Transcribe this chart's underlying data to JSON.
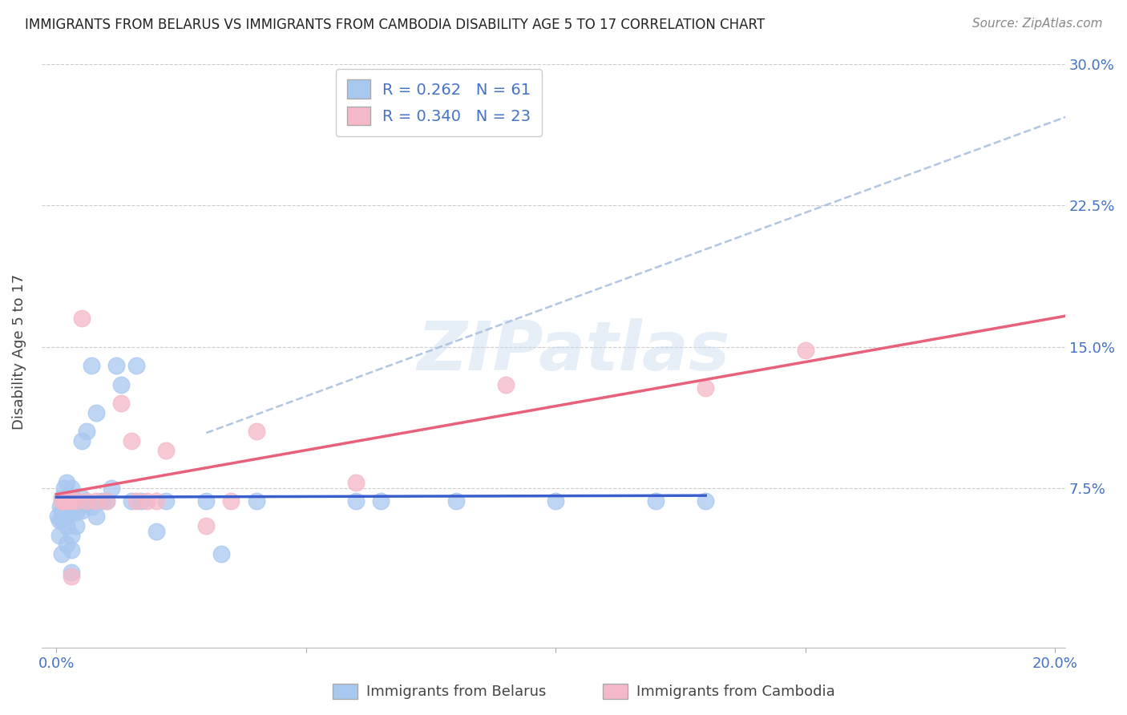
{
  "title": "IMMIGRANTS FROM BELARUS VS IMMIGRANTS FROM CAMBODIA DISABILITY AGE 5 TO 17 CORRELATION CHART",
  "source": "Source: ZipAtlas.com",
  "ylabel": "Disability Age 5 to 17",
  "xlim": [
    -0.003,
    0.202
  ],
  "ylim": [
    -0.01,
    0.305
  ],
  "xtick_vals": [
    0.0,
    0.05,
    0.1,
    0.15,
    0.2
  ],
  "xtick_labels": [
    "0.0%",
    "",
    "",
    "",
    "20.0%"
  ],
  "ytick_vals": [
    0.075,
    0.15,
    0.225,
    0.3
  ],
  "ytick_labels": [
    "7.5%",
    "15.0%",
    "22.5%",
    "30.0%"
  ],
  "watermark": "ZIPatlas",
  "belarus_color": "#a8c8f0",
  "cambodia_color": "#f5b8c8",
  "belarus_line_color": "#3a5fcd",
  "cambodia_line_color": "#e8607a",
  "dashed_line_color": "#a8c0e0",
  "R_belarus": 0.262,
  "N_belarus": 61,
  "R_cambodia": 0.34,
  "N_cambodia": 23,
  "belarus_x": [
    0.0003,
    0.0005,
    0.0006,
    0.0008,
    0.001,
    0.001,
    0.001,
    0.001,
    0.0012,
    0.0013,
    0.0015,
    0.0015,
    0.002,
    0.002,
    0.002,
    0.002,
    0.002,
    0.003,
    0.003,
    0.003,
    0.003,
    0.003,
    0.003,
    0.004,
    0.004,
    0.004,
    0.005,
    0.005,
    0.005,
    0.006,
    0.006,
    0.007,
    0.007,
    0.008,
    0.008,
    0.009,
    0.01,
    0.011,
    0.012,
    0.013,
    0.015,
    0.016,
    0.017,
    0.02,
    0.022,
    0.03,
    0.033,
    0.04,
    0.06,
    0.065,
    0.08,
    0.1,
    0.12,
    0.13
  ],
  "belarus_y": [
    0.06,
    0.058,
    0.05,
    0.065,
    0.04,
    0.058,
    0.063,
    0.07,
    0.06,
    0.063,
    0.067,
    0.075,
    0.045,
    0.055,
    0.06,
    0.068,
    0.078,
    0.03,
    0.042,
    0.05,
    0.062,
    0.068,
    0.075,
    0.055,
    0.062,
    0.068,
    0.063,
    0.07,
    0.1,
    0.067,
    0.105,
    0.065,
    0.14,
    0.06,
    0.115,
    0.068,
    0.068,
    0.075,
    0.14,
    0.13,
    0.068,
    0.14,
    0.068,
    0.052,
    0.068,
    0.068,
    0.04,
    0.068,
    0.068,
    0.068,
    0.068,
    0.068,
    0.068,
    0.068
  ],
  "cambodia_x": [
    0.001,
    0.0015,
    0.002,
    0.003,
    0.004,
    0.005,
    0.006,
    0.008,
    0.01,
    0.013,
    0.015,
    0.016,
    0.018,
    0.02,
    0.022,
    0.03,
    0.035,
    0.04,
    0.06,
    0.09,
    0.13,
    0.15,
    0.003
  ],
  "cambodia_y": [
    0.068,
    0.068,
    0.068,
    0.068,
    0.068,
    0.165,
    0.068,
    0.068,
    0.068,
    0.12,
    0.1,
    0.068,
    0.068,
    0.068,
    0.095,
    0.055,
    0.068,
    0.105,
    0.078,
    0.13,
    0.128,
    0.148,
    0.028
  ],
  "background_color": "#ffffff",
  "grid_color": "#cccccc",
  "axis_label_color": "#4472c4",
  "ylabel_color": "#444444",
  "title_color": "#222222"
}
